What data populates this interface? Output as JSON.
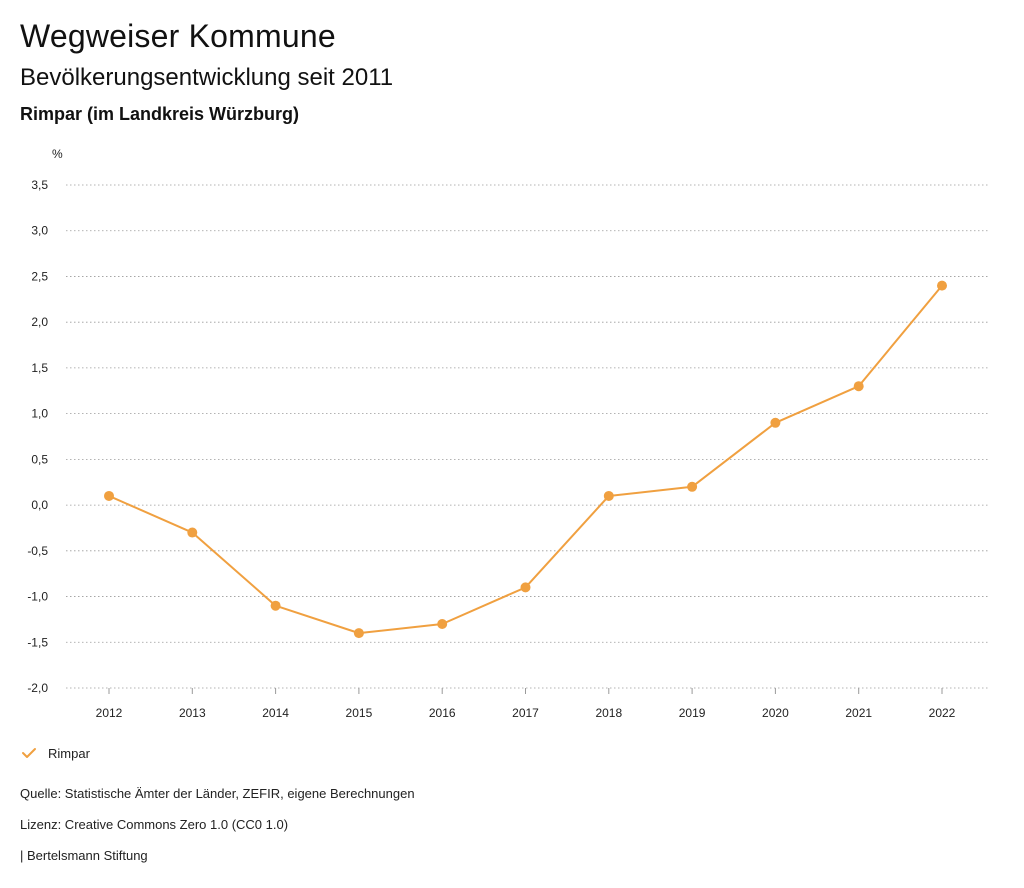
{
  "header": {
    "title": "Wegweiser Kommune",
    "subtitle": "Bevölkerungsentwicklung seit 2011",
    "region": "Rimpar (im Landkreis Würzburg)"
  },
  "legend": {
    "label": "Rimpar",
    "color": "#f0a040"
  },
  "footer": {
    "source": "Quelle: Statistische Ämter der Länder, ZEFIR, eigene Berechnungen",
    "license": "Lizenz: Creative Commons Zero 1.0 (CC0 1.0)",
    "brand": "| Bertelsmann Stiftung"
  },
  "chart_data": {
    "type": "line",
    "title": "Bevölkerungsentwicklung seit 2011",
    "ylabel": "%",
    "xlabel": "",
    "x": [
      "2012",
      "2013",
      "2014",
      "2015",
      "2016",
      "2017",
      "2018",
      "2019",
      "2020",
      "2021",
      "2022"
    ],
    "series": [
      {
        "name": "Rimpar",
        "color": "#f0a040",
        "values": [
          0.1,
          -0.3,
          -1.1,
          -1.4,
          -1.3,
          -0.9,
          0.1,
          0.2,
          0.9,
          1.3,
          2.4
        ]
      }
    ],
    "ylim": [
      -2.0,
      3.5
    ],
    "yticks": [
      3.5,
      3.0,
      2.5,
      2.0,
      1.5,
      1.0,
      0.5,
      0.0,
      -0.5,
      -1.0,
      -1.5,
      -2.0
    ],
    "ytick_labels": [
      "3,5",
      "3,0",
      "2,5",
      "2,0",
      "1,5",
      "1,0",
      "0,5",
      "0,0",
      "-0,5",
      "-1,0",
      "-1,5",
      "-2,0"
    ],
    "grid": true,
    "legend_position": "bottom-left"
  }
}
